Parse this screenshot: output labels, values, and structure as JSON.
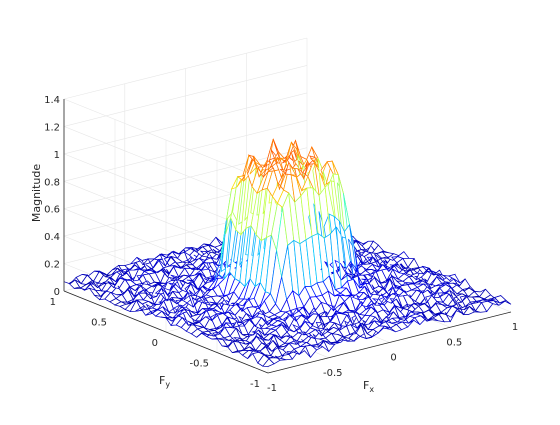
{
  "chart_data": {
    "type": "surface-mesh",
    "title": "",
    "xlabel": "F",
    "xlabel_sub": "x",
    "ylabel": "F",
    "ylabel_sub": "y",
    "zlabel": "Magnitude",
    "xlim": [
      -1,
      1
    ],
    "ylim": [
      -1,
      1
    ],
    "zlim": [
      0,
      1.4
    ],
    "xticks": [
      -1,
      -0.5,
      0,
      0.5,
      1
    ],
    "xtick_labels": [
      "-1",
      "-0.5",
      "0",
      "0.5",
      "1"
    ],
    "yticks": [
      -1,
      -0.5,
      0,
      0.5,
      1
    ],
    "ytick_labels": [
      "-1",
      "-0.5",
      "0",
      "0.5",
      "1"
    ],
    "zticks": [
      0,
      0.2,
      0.4,
      0.6,
      0.8,
      1,
      1.2,
      1.4
    ],
    "ztick_labels": [
      "0",
      "0.2",
      "0.4",
      "0.6",
      "0.8",
      "1",
      "1.2",
      "1.4"
    ],
    "grid": true,
    "colormap": "jet",
    "passband": {
      "shape": "square",
      "fx": [
        -0.3,
        0.3
      ],
      "fy": [
        -0.3,
        0.3
      ],
      "level": 1.0
    },
    "stopband_level": 0.1,
    "peak_magnitude": 1.3,
    "colors": {
      "edge": "#262626",
      "grid": "#e6e6e6",
      "pane": "#ffffff"
    }
  }
}
